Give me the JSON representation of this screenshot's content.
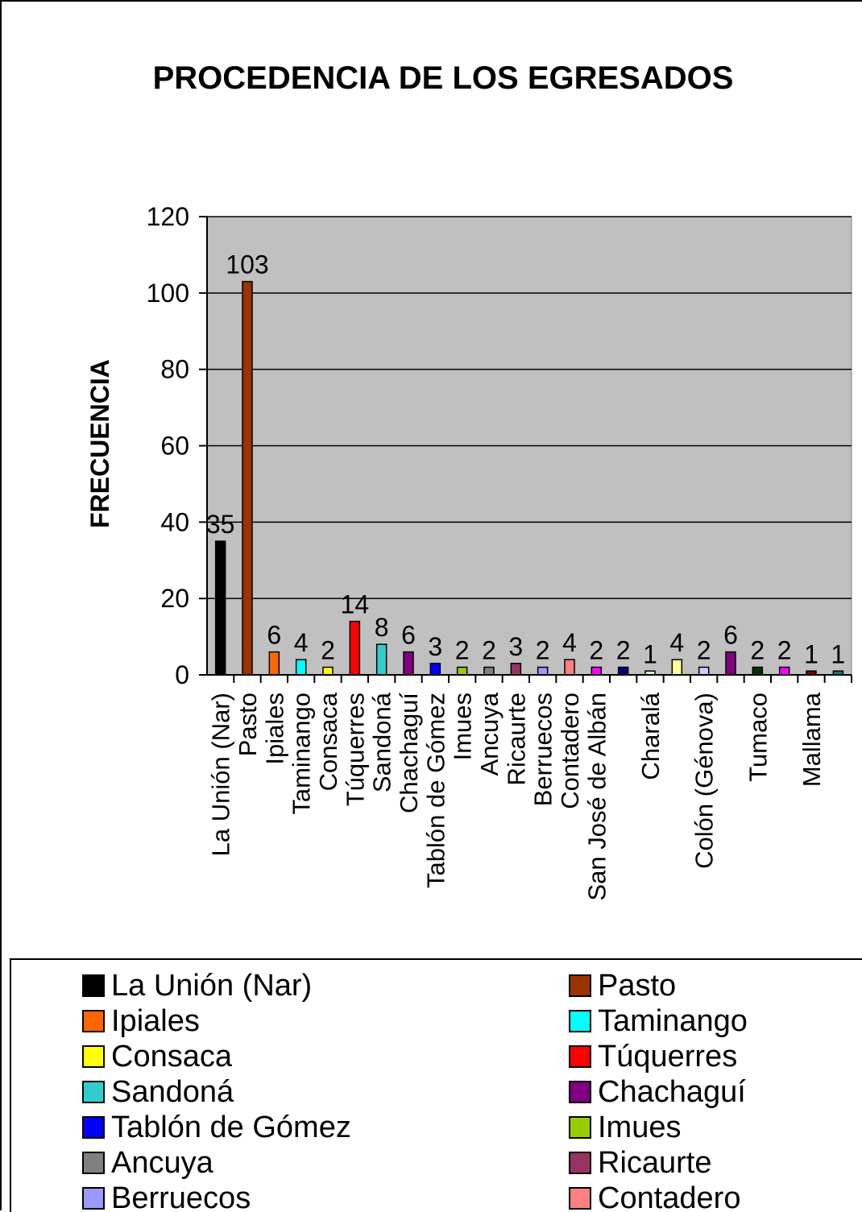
{
  "chart_data": {
    "type": "bar",
    "title": "PROCEDENCIA DE LOS EGRESADOS",
    "xlabel": "",
    "ylabel": "FRECUENCIA",
    "ylim": [
      0,
      120
    ],
    "yticks": [
      "0",
      "20",
      "40",
      "60",
      "80",
      "100",
      "120"
    ],
    "ytick_values": [
      0,
      20,
      40,
      60,
      80,
      100,
      120
    ],
    "grid": true,
    "legend_position": "bottom",
    "plot_background": "#c0c0c0",
    "categories": [
      "La Unión (Nar)",
      "Pasto",
      "Ipiales",
      "Taminango",
      "Consaca",
      "Túquerres",
      "Sandoná",
      "Chachaguí",
      "Tablón de Gómez",
      "Imues",
      "Ancuya",
      "Ricaurte",
      "Berruecos",
      "Contadero",
      "San José de Albán",
      "",
      "Charalá",
      "",
      "Colón (Génova)",
      "",
      "Tumaco",
      "",
      "Mallama",
      ""
    ],
    "values": [
      35,
      103,
      6,
      4,
      2,
      14,
      8,
      6,
      3,
      2,
      2,
      3,
      2,
      4,
      2,
      2,
      1,
      4,
      2,
      6,
      2,
      2,
      1,
      1
    ],
    "value_labels": [
      "35",
      "103",
      "6",
      "4",
      "2",
      "14",
      "8",
      "6",
      "3",
      "2",
      "2",
      "3",
      "2",
      "4",
      "2",
      "2",
      "1",
      "4",
      "2",
      "6",
      "2",
      "2",
      "1",
      "1"
    ],
    "colors": [
      "#000000",
      "#993300",
      "#ff6600",
      "#00ffff",
      "#ffff00",
      "#ff0000",
      "#33cccc",
      "#800080",
      "#0000ff",
      "#99cc00",
      "#808080",
      "#993366",
      "#9999ff",
      "#ff8080",
      "#ff00ff",
      "#000080",
      "#ccffcc",
      "#ffff99",
      "#ccccff",
      "#800080",
      "#003300",
      "#ff00ff",
      "#800000",
      "#008080"
    ]
  },
  "legend": {
    "items": [
      {
        "label": "La Unión (Nar)",
        "color": "#000000"
      },
      {
        "label": "Pasto",
        "color": "#993300"
      },
      {
        "label": "Ipiales",
        "color": "#ff6600"
      },
      {
        "label": "Taminango",
        "color": "#00ffff"
      },
      {
        "label": "Consaca",
        "color": "#ffff00"
      },
      {
        "label": "Túquerres",
        "color": "#ff0000"
      },
      {
        "label": "Sandoná",
        "color": "#33cccc"
      },
      {
        "label": "Chachaguí",
        "color": "#800080"
      },
      {
        "label": "Tablón de Gómez",
        "color": "#0000ff"
      },
      {
        "label": "Imues",
        "color": "#99cc00"
      },
      {
        "label": "Ancuya",
        "color": "#808080"
      },
      {
        "label": "Ricaurte",
        "color": "#993366"
      },
      {
        "label": "Berruecos",
        "color": "#9999ff"
      },
      {
        "label": "Contadero",
        "color": "#ff8080"
      }
    ]
  }
}
